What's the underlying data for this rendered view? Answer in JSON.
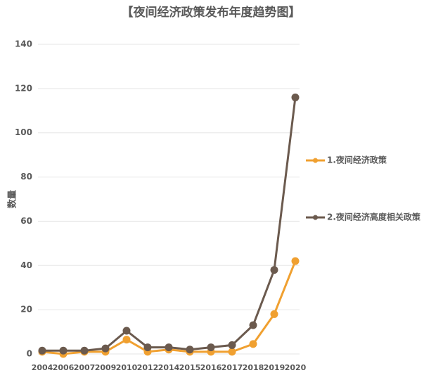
{
  "chart_data": {
    "type": "line",
    "title": "【夜间经济政策发布年度趋势图】",
    "y_label": "数量",
    "categories": [
      "2004",
      "2006",
      "2007",
      "2009",
      "2010",
      "2012",
      "2014",
      "2015",
      "2016",
      "2017",
      "2018",
      "2019",
      "2020"
    ],
    "series": [
      {
        "name": "1.夜间经济政策",
        "color": "#f0a030",
        "values": [
          1,
          0,
          1,
          1,
          6.5,
          1,
          2,
          1,
          1,
          1,
          4.5,
          18,
          42
        ]
      },
      {
        "name": "2.夜间经济高度相关政策",
        "color": "#6b5a4e",
        "values": [
          1.5,
          1.5,
          1.5,
          2.5,
          10.5,
          3,
          3,
          2,
          3,
          4,
          13,
          38,
          116
        ]
      }
    ],
    "ylim": [
      0,
      140
    ],
    "yticks": [
      0,
      20,
      40,
      60,
      80,
      100,
      120,
      140
    ],
    "grid": true,
    "legend": "right"
  }
}
